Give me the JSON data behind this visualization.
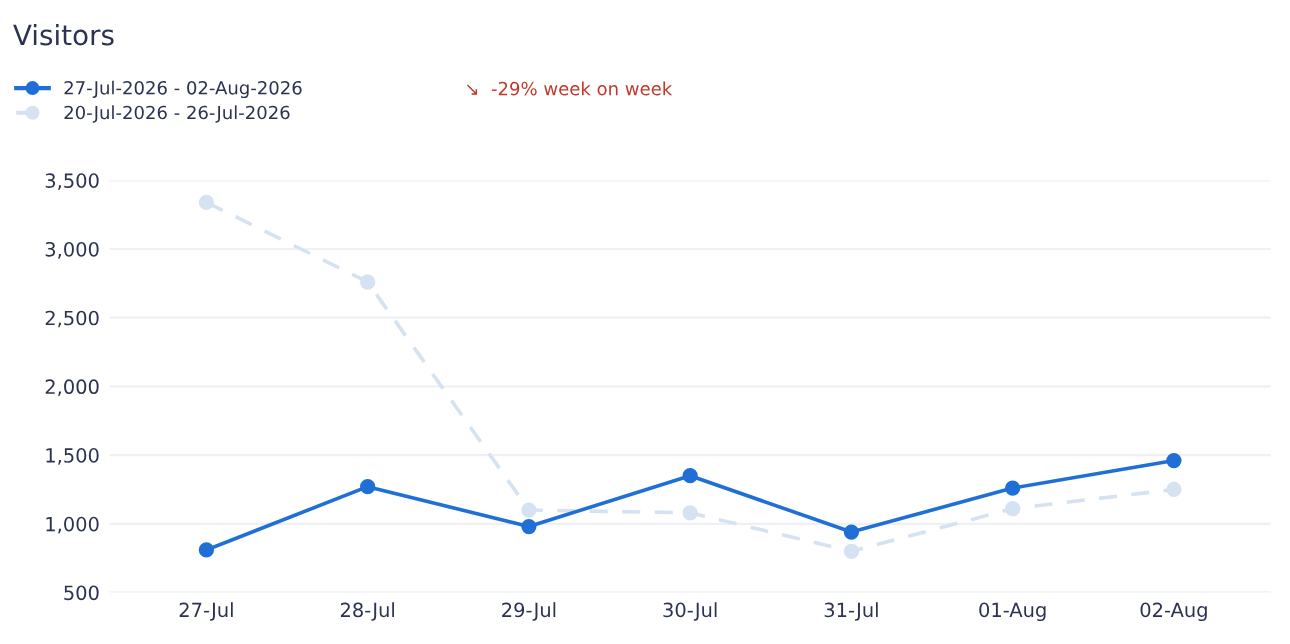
{
  "chart_data": {
    "type": "line",
    "title": "Visitors",
    "categories": [
      "27-Jul",
      "28-Jul",
      "29-Jul",
      "30-Jul",
      "31-Jul",
      "01-Aug",
      "02-Aug"
    ],
    "series": [
      {
        "name": "27-Jul-2026 - 02-Aug-2026",
        "color": "#1f6fd6",
        "values": [
          810,
          1270,
          980,
          1350,
          940,
          1260,
          1460
        ],
        "line_style": "solid"
      },
      {
        "name": "20-Jul-2026 - 26-Jul-2026",
        "color": "#d5e2f2",
        "values": [
          3340,
          2760,
          1100,
          1080,
          800,
          1110,
          1250
        ],
        "line_style": "dashed"
      }
    ],
    "ylim": [
      500,
      3500
    ],
    "yticks": [
      {
        "value": 500,
        "label": "500"
      },
      {
        "value": 1000,
        "label": "1,000"
      },
      {
        "value": 1500,
        "label": "1,500"
      },
      {
        "value": 2000,
        "label": "2,000"
      },
      {
        "value": 2500,
        "label": "2,500"
      },
      {
        "value": 3000,
        "label": "3,000"
      },
      {
        "value": 3500,
        "label": "3,500"
      }
    ],
    "grid": "y",
    "marker": "circle",
    "legend": "top left",
    "annotations": [
      "↘  -29% week on week"
    ]
  }
}
